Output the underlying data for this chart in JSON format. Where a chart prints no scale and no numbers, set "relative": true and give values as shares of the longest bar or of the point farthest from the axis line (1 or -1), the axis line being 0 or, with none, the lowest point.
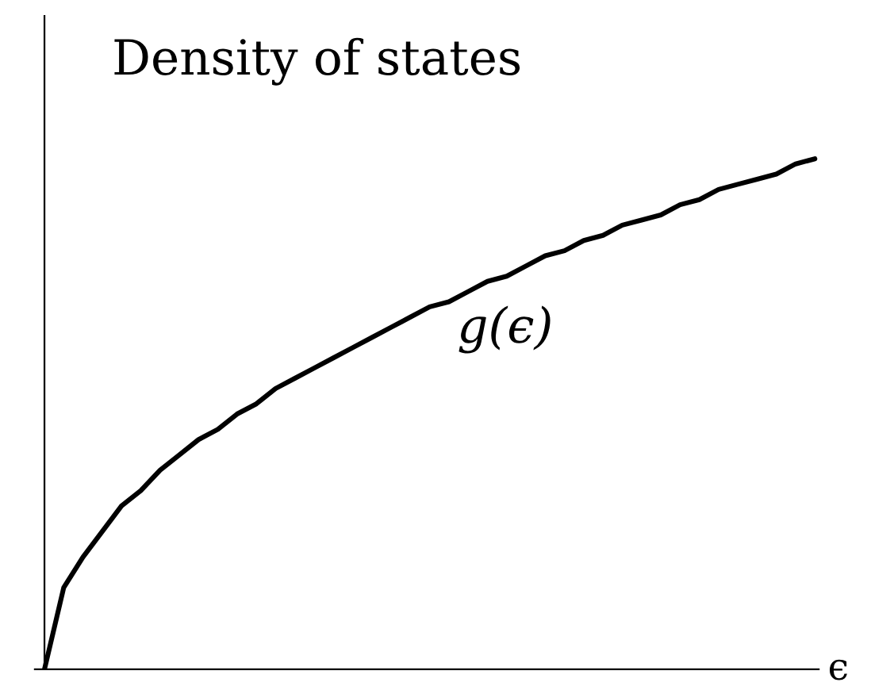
{
  "chart_data": {
    "type": "line",
    "title": "Density of states",
    "xlabel": "ϵ",
    "annotations": [
      "g(ϵ)"
    ],
    "relative": true,
    "marker": "none",
    "line_style": "solid",
    "categories": [
      null,
      null,
      null,
      null,
      null,
      null,
      null,
      null,
      null,
      null,
      null,
      null,
      null,
      null,
      null,
      null,
      null,
      null,
      null,
      null,
      null,
      null,
      null,
      null,
      null,
      null,
      null,
      null,
      null,
      null,
      null,
      null,
      null,
      null,
      null,
      null,
      null,
      null,
      null,
      null,
      null
    ],
    "series": [
      {
        "color": "#000000",
        "values": [
          0,
          0.16,
          0.22,
          0.27,
          0.32,
          0.35,
          0.39,
          0.42,
          0.45,
          0.47,
          0.5,
          0.52,
          0.55,
          0.57,
          0.59,
          0.61,
          0.63,
          0.65,
          0.67,
          0.69,
          0.71,
          0.72,
          0.74,
          0.76,
          0.77,
          0.79,
          0.81,
          0.82,
          0.84,
          0.85,
          0.87,
          0.88,
          0.89,
          0.91,
          0.92,
          0.94,
          0.95,
          0.96,
          0.97,
          0.99,
          1
        ]
      }
    ]
  }
}
